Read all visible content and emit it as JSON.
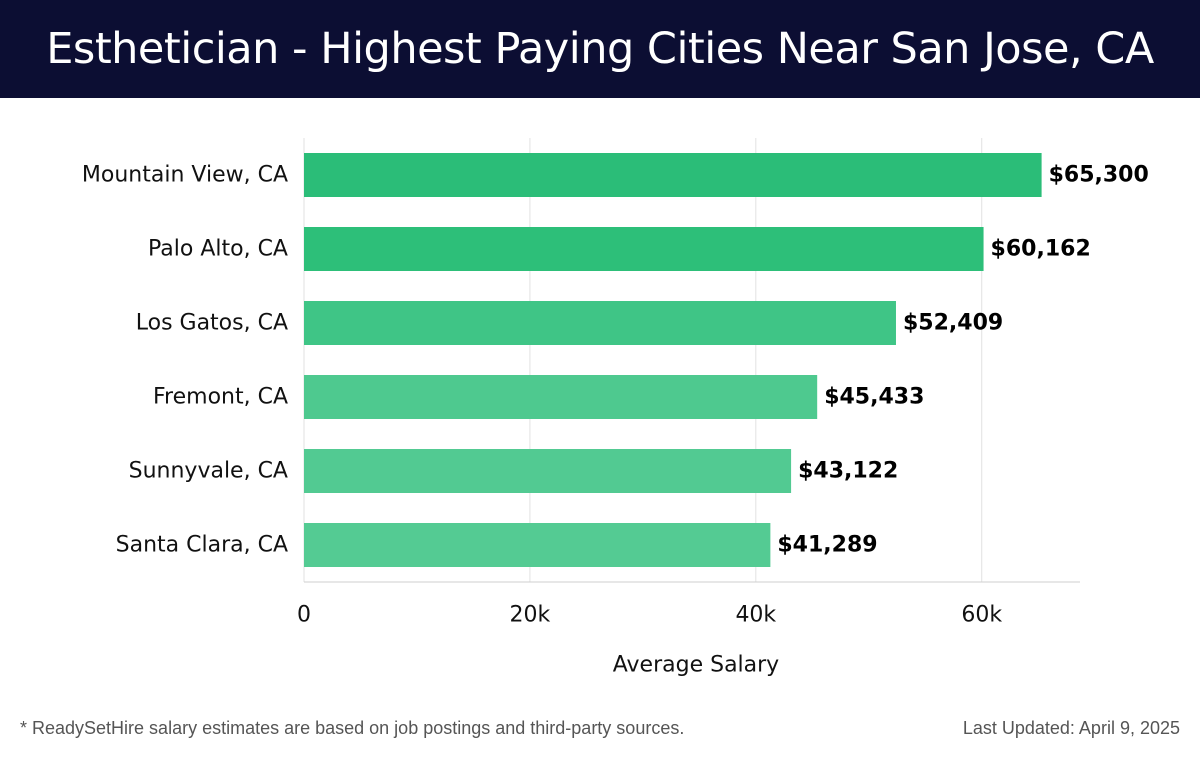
{
  "header": {
    "title": "Esthetician - Highest Paying Cities Near San Jose, CA"
  },
  "footer": {
    "note": "* ReadySetHire salary estimates are based on job postings and third-party sources.",
    "updated": "Last Updated: April 9, 2025"
  },
  "chart_data": {
    "type": "bar",
    "orientation": "horizontal",
    "categories": [
      "Mountain View, CA",
      "Palo Alto, CA",
      "Los Gatos, CA",
      "Fremont, CA",
      "Sunnyvale, CA",
      "Santa Clara, CA"
    ],
    "values": [
      65300,
      60162,
      52409,
      45433,
      43122,
      41289
    ],
    "value_labels": [
      "$65,300",
      "$60,162",
      "$52,409",
      "$45,433",
      "$43,122",
      "$41,289"
    ],
    "xlabel": "Average Salary",
    "ylabel": "",
    "xlim": [
      0,
      68700
    ],
    "xticks": [
      0,
      20000,
      40000,
      60000
    ],
    "xtick_labels": [
      "0",
      "20k",
      "40k",
      "60k"
    ],
    "grid": "vertical",
    "colors": [
      "#2bbd78",
      "#2dbf79",
      "#3fc586",
      "#4ec98f",
      "#52ca92",
      "#54cb93"
    ]
  }
}
